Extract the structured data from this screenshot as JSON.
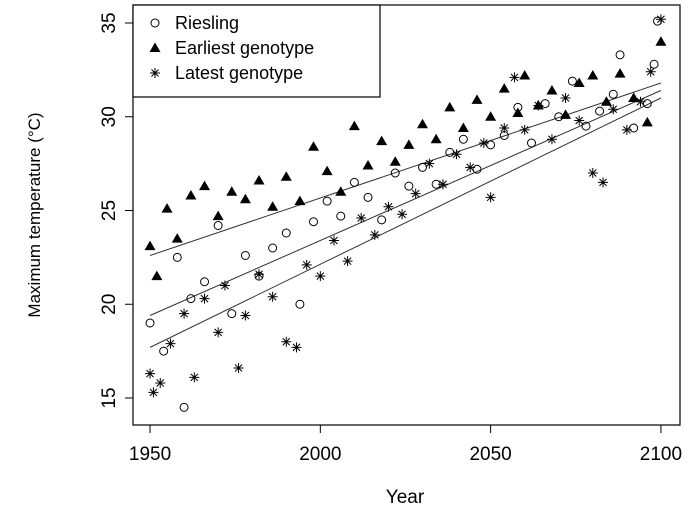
{
  "chart_data": {
    "type": "scatter",
    "xlabel": "Year",
    "ylabel": "Maximum temperature (°C)",
    "xlim": [
      1945,
      2105.6
    ],
    "ylim": [
      13.56,
      35.96
    ],
    "xticks": [
      1950,
      2000,
      2050,
      2100
    ],
    "yticks": [
      15,
      20,
      25,
      30,
      35
    ],
    "legend": "top-left",
    "series": [
      {
        "name": "Riesling",
        "marker": "circle",
        "color": "#000000",
        "x": [
          1950,
          1954,
          1958,
          1960,
          1962,
          1966,
          1970,
          1974,
          1978,
          1982,
          1986,
          1990,
          1994,
          1998,
          2002,
          2006,
          2010,
          2014,
          2018,
          2022,
          2026,
          2030,
          2034,
          2038,
          2042,
          2046,
          2050,
          2054,
          2058,
          2062,
          2066,
          2070,
          2074,
          2078,
          2082,
          2086,
          2088,
          2092,
          2096,
          2098,
          2099
        ],
        "values": [
          19.0,
          17.5,
          22.5,
          14.5,
          20.3,
          21.2,
          24.2,
          19.5,
          22.6,
          21.5,
          23.0,
          23.8,
          20.0,
          24.4,
          25.5,
          24.7,
          26.5,
          25.7,
          24.5,
          27.0,
          26.3,
          27.3,
          26.4,
          28.1,
          28.8,
          27.2,
          28.5,
          29.0,
          30.5,
          28.6,
          30.7,
          30.0,
          31.9,
          29.5,
          30.3,
          31.2,
          33.3,
          29.4,
          30.7,
          32.8,
          35.1
        ]
      },
      {
        "name": "Earliest genotype",
        "marker": "triangle",
        "color": "#000000",
        "x": [
          1950,
          1952,
          1955,
          1958,
          1962,
          1966,
          1970,
          1974,
          1978,
          1982,
          1986,
          1990,
          1994,
          1998,
          2002,
          2006,
          2010,
          2014,
          2018,
          2022,
          2026,
          2030,
          2034,
          2038,
          2042,
          2046,
          2050,
          2054,
          2058,
          2060,
          2064,
          2068,
          2072,
          2076,
          2080,
          2084,
          2088,
          2092,
          2096,
          2100
        ],
        "values": [
          23.1,
          21.5,
          25.1,
          23.5,
          25.8,
          26.3,
          24.7,
          26.0,
          25.6,
          26.6,
          25.2,
          26.8,
          25.5,
          28.4,
          27.1,
          26.0,
          29.5,
          27.4,
          28.7,
          27.6,
          28.5,
          29.6,
          28.8,
          30.5,
          29.4,
          30.9,
          30.0,
          31.5,
          30.2,
          32.2,
          30.6,
          31.4,
          30.1,
          31.8,
          32.2,
          30.8,
          32.3,
          31.0,
          29.7,
          34.0
        ]
      },
      {
        "name": "Latest genotype",
        "marker": "asterisk",
        "color": "#000000",
        "x": [
          1950,
          1951,
          1953,
          1956,
          1960,
          1963,
          1966,
          1970,
          1972,
          1976,
          1978,
          1982,
          1986,
          1990,
          1993,
          1996,
          2000,
          2004,
          2008,
          2012,
          2016,
          2020,
          2024,
          2028,
          2032,
          2036,
          2040,
          2044,
          2048,
          2050,
          2054,
          2057,
          2060,
          2064,
          2068,
          2072,
          2076,
          2080,
          2083,
          2086,
          2090,
          2094,
          2097,
          2100
        ],
        "values": [
          16.3,
          15.3,
          15.8,
          17.9,
          19.5,
          16.1,
          20.3,
          18.5,
          21.0,
          16.6,
          19.4,
          21.6,
          20.4,
          18.0,
          17.7,
          22.1,
          21.5,
          23.4,
          22.3,
          24.6,
          23.7,
          25.2,
          24.8,
          25.9,
          27.5,
          26.4,
          28.0,
          27.3,
          28.6,
          25.7,
          29.4,
          32.1,
          29.3,
          30.6,
          28.8,
          31.0,
          29.8,
          27.0,
          26.5,
          30.4,
          29.3,
          30.8,
          32.4,
          35.2
        ]
      }
    ],
    "trend_lines": [
      {
        "x": [
          1950,
          2100
        ],
        "values": [
          19.4,
          31.4
        ]
      },
      {
        "x": [
          1950,
          2100
        ],
        "values": [
          22.6,
          31.8
        ]
      },
      {
        "x": [
          1950,
          2100
        ],
        "values": [
          17.7,
          31.0
        ]
      }
    ]
  }
}
